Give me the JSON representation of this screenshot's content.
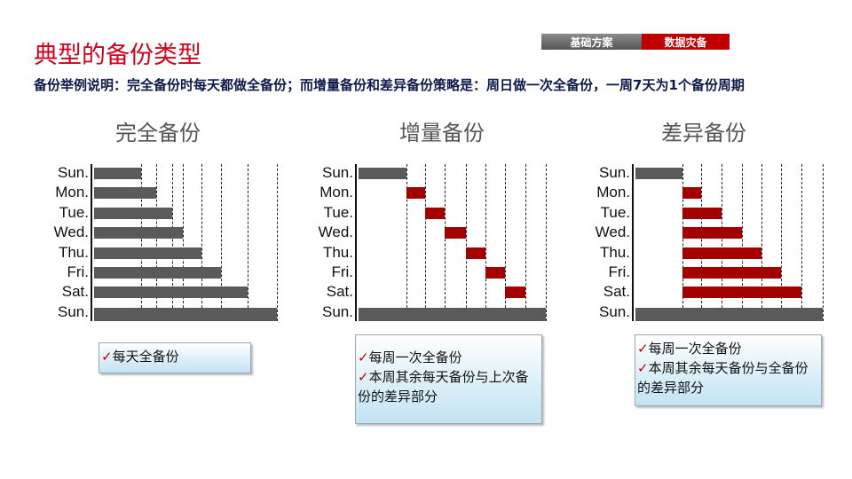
{
  "title": "典型的备份类型",
  "nav": {
    "tab1": "基础方案",
    "tab2": "数据灾备"
  },
  "description": "备份举例说明：完全备份时每天都做全备份；而增量备份和差异备份策略是：周日做一次全备份，一周7天为1个备份周期",
  "colors": {
    "full": "#5a5a5a",
    "partial": "#a50000",
    "accent": "#d0021b"
  },
  "days": [
    "Sun.",
    "Mon.",
    "Tue.",
    "Wed.",
    "Thu.",
    "Fri.",
    "Sat.",
    "Sun."
  ],
  "charts": [
    {
      "title": "完全备份",
      "bars": [
        [
          0,
          1,
          "full"
        ],
        [
          0,
          2,
          "full"
        ],
        [
          0,
          3,
          "full"
        ],
        [
          0,
          4,
          "full"
        ],
        [
          0,
          5,
          "full"
        ],
        [
          0,
          6,
          "full"
        ],
        [
          0,
          7,
          "full"
        ],
        [
          0,
          8,
          "full"
        ]
      ],
      "notes": [
        "每天全备份"
      ]
    },
    {
      "title": "增量备份",
      "bars": [
        [
          0,
          1,
          "full"
        ],
        [
          1,
          2,
          "partial"
        ],
        [
          2,
          3,
          "partial"
        ],
        [
          3,
          4,
          "partial"
        ],
        [
          4,
          5,
          "partial"
        ],
        [
          5,
          6,
          "partial"
        ],
        [
          6,
          7,
          "partial"
        ],
        [
          0,
          8,
          "full"
        ]
      ],
      "notes": [
        "每周一次全备份",
        "本周其余每天备份与上次备份的差异部分"
      ]
    },
    {
      "title": "差异备份",
      "bars": [
        [
          0,
          1,
          "full"
        ],
        [
          1,
          2,
          "partial"
        ],
        [
          1,
          3,
          "partial"
        ],
        [
          1,
          4,
          "partial"
        ],
        [
          1,
          5,
          "partial"
        ],
        [
          1,
          6,
          "partial"
        ],
        [
          1,
          7,
          "partial"
        ],
        [
          0,
          8,
          "full"
        ]
      ],
      "notes": [
        "每周一次全备份",
        "本周其余每天备份与全备份的差异部分"
      ]
    }
  ],
  "check_icon": "✓"
}
